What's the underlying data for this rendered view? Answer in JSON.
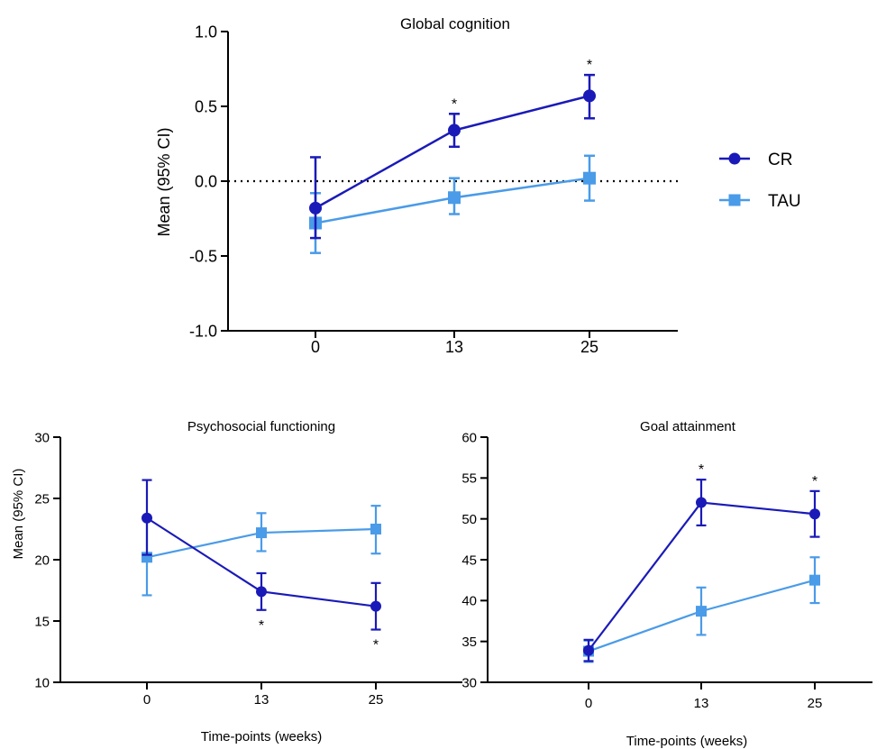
{
  "colors": {
    "cr": "#1a1ab8",
    "tau": "#4a9be8",
    "axis": "#000000"
  },
  "legend": {
    "cr_label": "CR",
    "tau_label": "TAU"
  },
  "chart_data": [
    {
      "type": "line",
      "title": "Global cognition",
      "xlabel": "",
      "ylabel": "Mean (95% CI)",
      "x": [
        0,
        13,
        25
      ],
      "xticks": [
        "0",
        "13",
        "25"
      ],
      "ylim": [
        -1.0,
        1.0
      ],
      "yticks": [
        "1.0",
        "0.5",
        "0.0",
        "-0.5",
        "-1.0"
      ],
      "reference_line": 0,
      "series": [
        {
          "name": "CR",
          "values": [
            -0.18,
            0.34,
            0.57
          ],
          "ci_low": [
            -0.38,
            0.23,
            0.42
          ],
          "ci_high": [
            0.16,
            0.45,
            0.71
          ],
          "marker": "circle"
        },
        {
          "name": "TAU",
          "values": [
            -0.28,
            -0.11,
            0.02
          ],
          "ci_low": [
            -0.48,
            -0.22,
            -0.13
          ],
          "ci_high": [
            -0.08,
            0.02,
            0.17
          ],
          "marker": "square"
        }
      ],
      "annotations": [
        {
          "x": 13,
          "text": "*",
          "position": "above"
        },
        {
          "x": 25,
          "text": "*",
          "position": "above"
        }
      ]
    },
    {
      "type": "line",
      "title": "Psychosocial functioning",
      "xlabel": "Time-points (weeks)",
      "ylabel": "Mean (95% CI)",
      "x": [
        0,
        13,
        25
      ],
      "xticks": [
        "0",
        "13",
        "25"
      ],
      "ylim": [
        10,
        30
      ],
      "yticks": [
        "30",
        "25",
        "20",
        "15",
        "10"
      ],
      "series": [
        {
          "name": "CR",
          "values": [
            23.4,
            17.4,
            16.2
          ],
          "ci_low": [
            20.4,
            15.9,
            14.3
          ],
          "ci_high": [
            26.5,
            18.9,
            18.1
          ],
          "marker": "circle"
        },
        {
          "name": "TAU",
          "values": [
            20.2,
            22.2,
            22.5
          ],
          "ci_low": [
            17.1,
            20.7,
            20.5
          ],
          "ci_high": [
            23.4,
            23.8,
            24.4
          ],
          "marker": "square"
        }
      ],
      "annotations": [
        {
          "x": 13,
          "text": "*",
          "position": "below"
        },
        {
          "x": 25,
          "text": "*",
          "position": "below"
        }
      ]
    },
    {
      "type": "line",
      "title": "Goal attainment",
      "xlabel": "Time-points (weeks)",
      "ylabel": "",
      "x": [
        0,
        13,
        25
      ],
      "xticks": [
        "0",
        "13",
        "25"
      ],
      "ylim": [
        30,
        60
      ],
      "yticks": [
        "60",
        "55",
        "50",
        "45",
        "40",
        "35",
        "30"
      ],
      "series": [
        {
          "name": "CR",
          "values": [
            33.9,
            52.0,
            50.6
          ],
          "ci_low": [
            32.6,
            49.2,
            47.8
          ],
          "ci_high": [
            35.2,
            54.8,
            53.4
          ],
          "marker": "circle"
        },
        {
          "name": "TAU",
          "values": [
            33.8,
            38.7,
            42.5
          ],
          "ci_low": [
            32.5,
            35.8,
            39.7
          ],
          "ci_high": [
            35.1,
            41.6,
            45.3
          ],
          "marker": "square"
        }
      ],
      "annotations": [
        {
          "x": 13,
          "text": "*",
          "position": "above"
        },
        {
          "x": 25,
          "text": "*",
          "position": "above"
        }
      ]
    }
  ]
}
